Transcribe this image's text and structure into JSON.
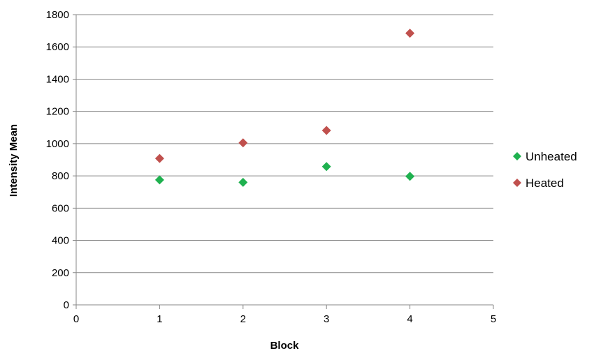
{
  "chart_data": {
    "type": "scatter",
    "title": "",
    "xlabel": "Block",
    "ylabel": "Intensity Mean",
    "xlim": [
      0,
      5
    ],
    "ylim": [
      0,
      1800
    ],
    "x_ticks": [
      "0",
      "1",
      "2",
      "3",
      "4",
      "5"
    ],
    "y_ticks": [
      "0",
      "200",
      "400",
      "600",
      "800",
      "1000",
      "1200",
      "1400",
      "1600",
      "1800"
    ],
    "grid": "horizontal",
    "legend_position": "right",
    "marker": "diamond",
    "series": [
      {
        "name": "Unheated",
        "color": "#1fb14f",
        "points": [
          {
            "x": 1,
            "y": 775
          },
          {
            "x": 2,
            "y": 760
          },
          {
            "x": 3,
            "y": 858
          },
          {
            "x": 4,
            "y": 797
          }
        ]
      },
      {
        "name": "Heated",
        "color": "#c0504d",
        "points": [
          {
            "x": 1,
            "y": 908
          },
          {
            "x": 2,
            "y": 1005
          },
          {
            "x": 3,
            "y": 1082
          },
          {
            "x": 4,
            "y": 1685
          }
        ]
      }
    ]
  }
}
